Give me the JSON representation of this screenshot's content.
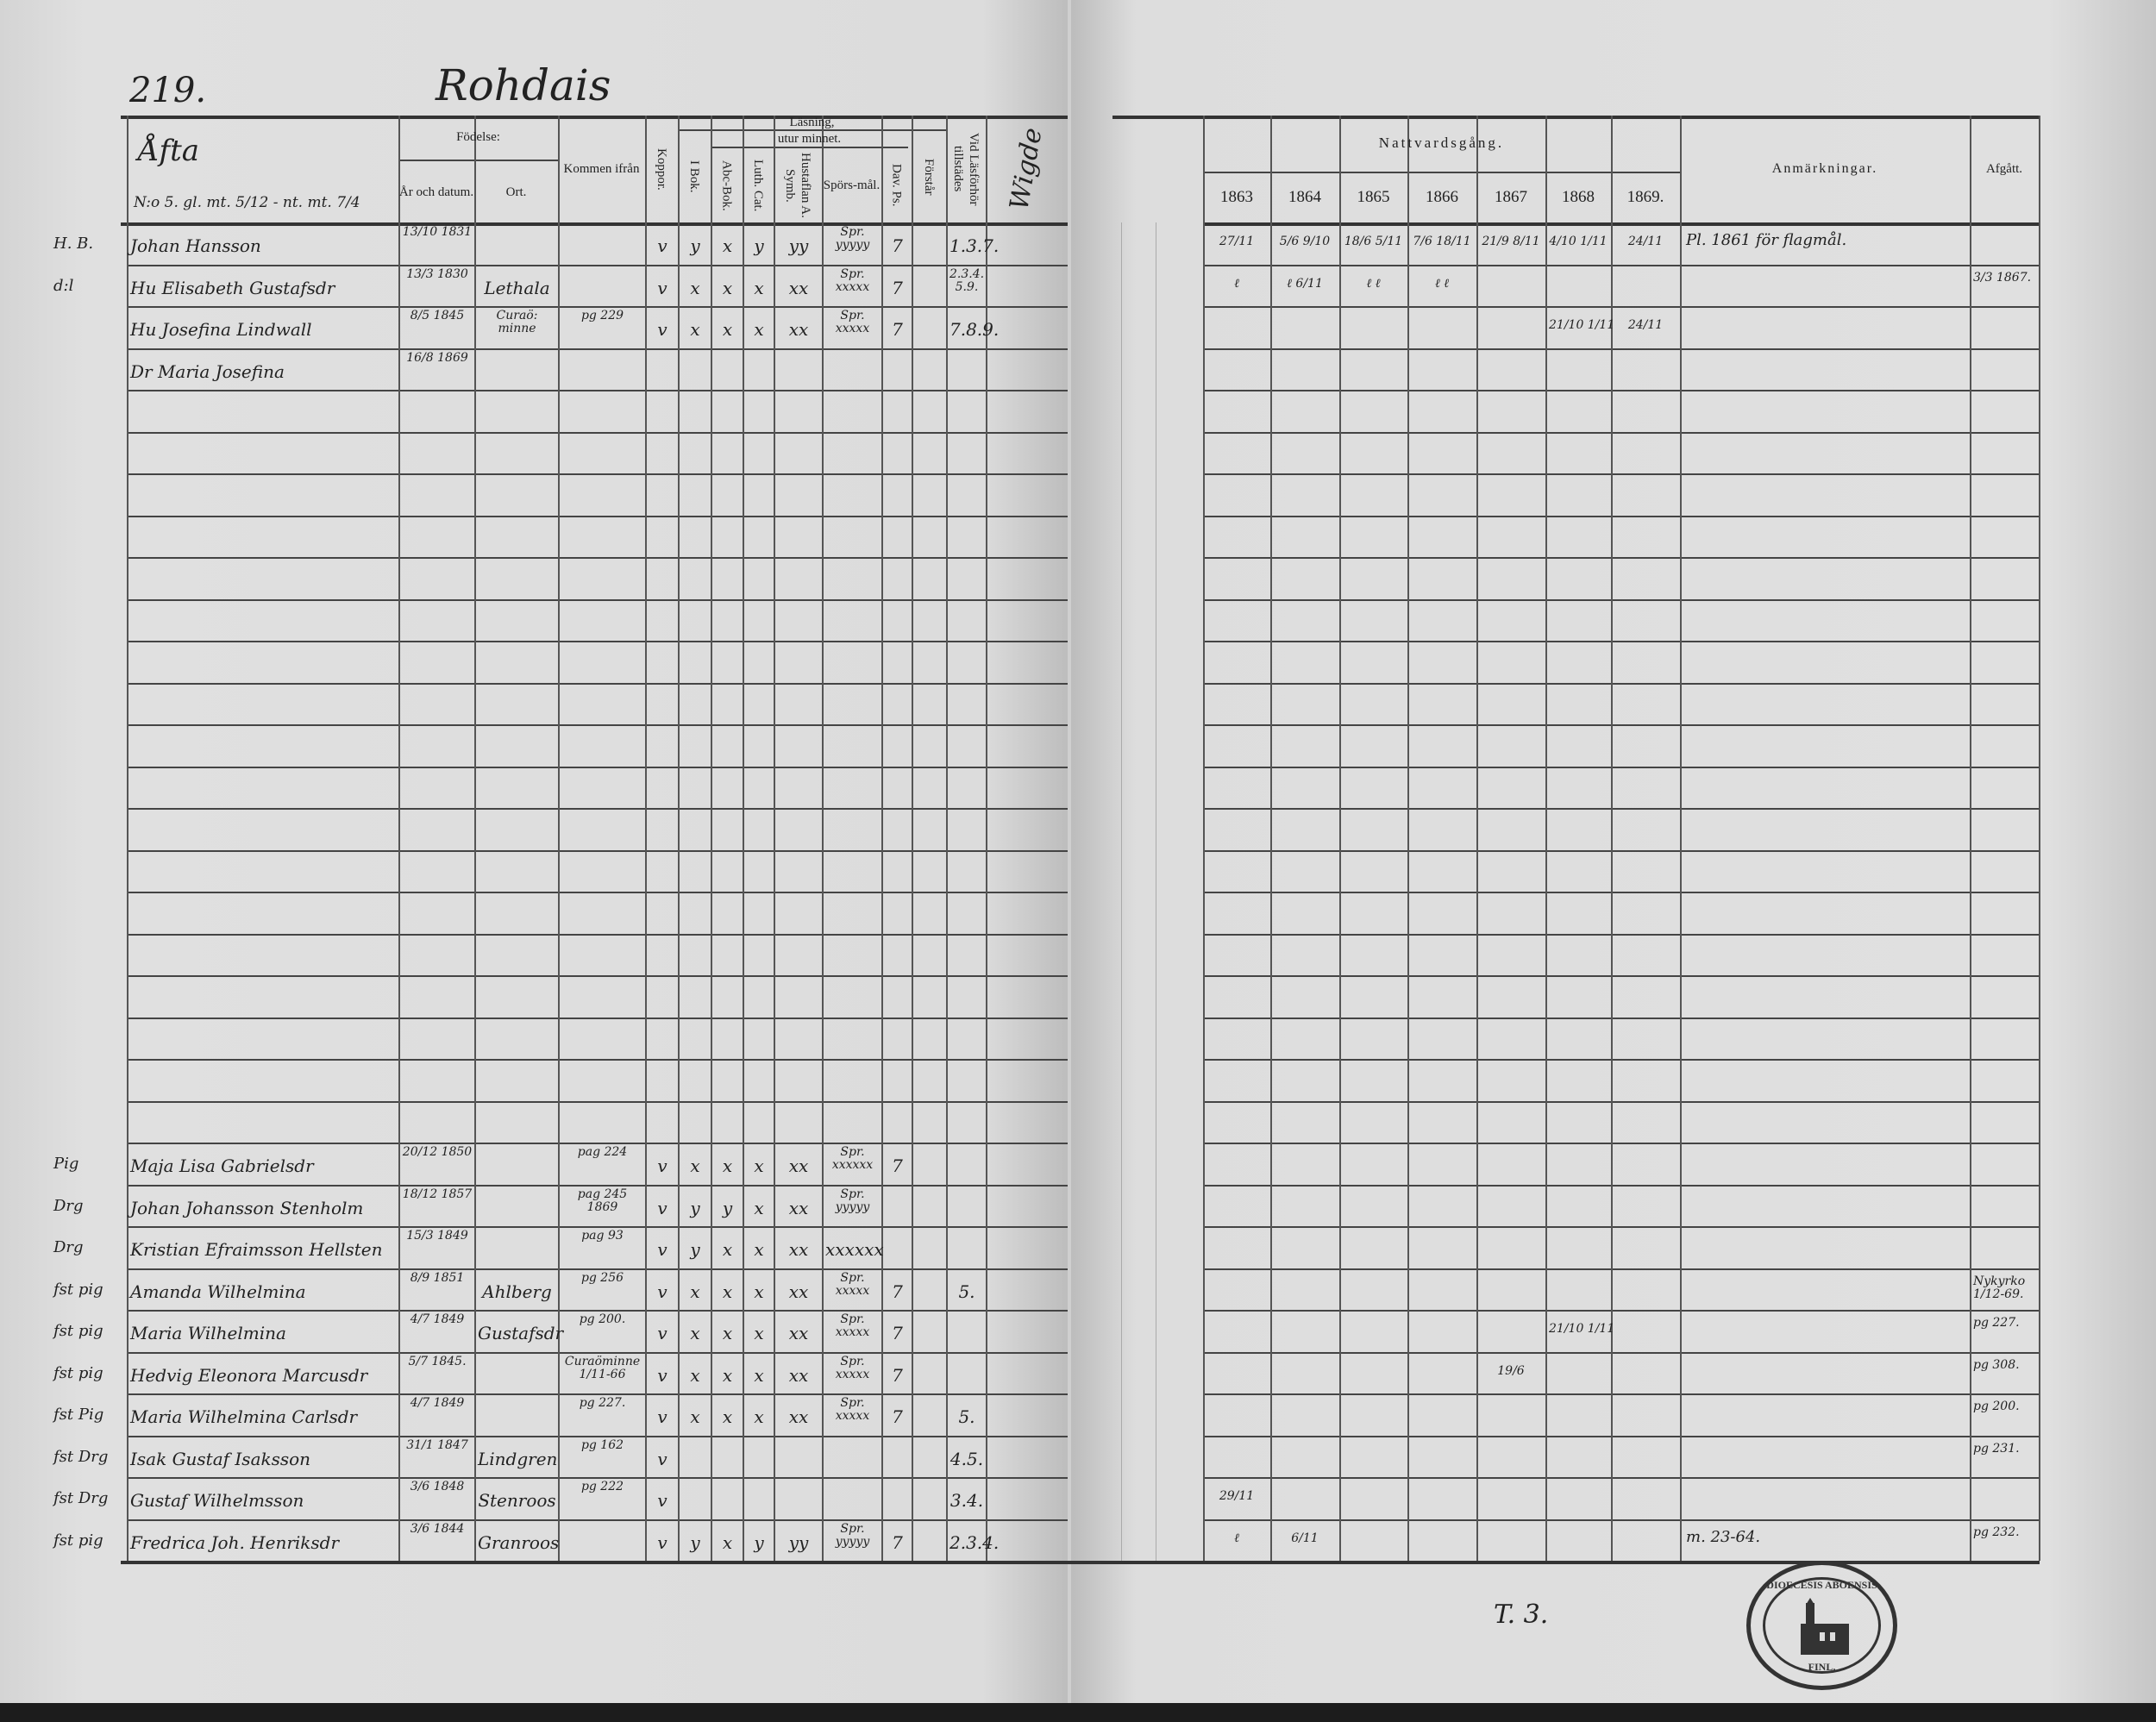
{
  "left_page": {
    "page_number": "219.",
    "title": "Rohdais",
    "header": {
      "afta": "Åfta",
      "afta_sub": "N:o 5. gl. mt. 5/12 - nt. mt. 7/4",
      "fodelse": "Födelse:",
      "ar_datum": "År och datum.",
      "ort": "Ort.",
      "kommen": "Kommen ifrån",
      "koppor": "Koppor.",
      "lasning": "Läsning,",
      "utur_minnet": "utur minnet.",
      "i_bok": "I Bok.",
      "abc": "Abc-Bok.",
      "luth": "Luth. Cat.",
      "hust": "Hustaflan A. Symb.",
      "spors": "Spörs-mål.",
      "dav": "Dav. Ps.",
      "forstar": "Förstår",
      "vid": "Vid Läsförhör tillstädes",
      "wigde": "Wigde"
    }
  },
  "right_page": {
    "header": {
      "nattvard": "Nattvardsgång.",
      "years": [
        "1863",
        "1864",
        "1865",
        "1866",
        "1867",
        "1868",
        "1869."
      ],
      "anmarkningar": "Anmärkningar.",
      "afgatt": "Afgått."
    },
    "footer": "T. 3.",
    "seal_text": {
      "top": "DIOECESIS ABOENSIS",
      "bottom": "FINL."
    }
  },
  "rows": [
    {
      "margin": "H. B.",
      "name": "Johan Hansson",
      "birth_date": "13/10 1831",
      "koppor": "v",
      "i_bok": "y",
      "abc": "x",
      "luth": "y",
      "hust": "yy",
      "spors": "Spr. yyyyy",
      "dav": "7",
      "vid": "1.3.7.",
      "communion": [
        "27/11",
        "5/6 9/10",
        "18/6 5/11",
        "7/6 18/11",
        "21/9 8/11",
        "4/10 1/11",
        "24/11"
      ],
      "remark": "Pl. 1861 för flagmål."
    },
    {
      "margin": "d:l",
      "name": "Hu Elisabeth Gustafsdr",
      "birth_date": "13/3 1830",
      "birth_place": "Lethala",
      "koppor": "v",
      "i_bok": "x",
      "abc": "x",
      "luth": "x",
      "hust": "xx",
      "spors": "Spr. xxxxx",
      "dav": "7",
      "vid": "2.3.4. 5.9.",
      "communion": [
        "ℓ",
        "ℓ 6/11",
        "ℓ ℓ",
        "ℓ ℓ",
        "",
        "",
        ""
      ],
      "afgatt": "3/3 1867."
    },
    {
      "name": "Hu Josefina Lindwall",
      "birth_date": "8/5 1845",
      "birth_place": "Curaö: minne",
      "from": "pg 229",
      "koppor": "v",
      "i_bok": "x",
      "abc": "x",
      "luth": "x",
      "hust": "xx",
      "spors": "Spr. xxxxx",
      "dav": "7",
      "vid": "7.8.9.",
      "communion": [
        "",
        "",
        "",
        "",
        "",
        "21/10 1/11",
        "24/11"
      ]
    },
    {
      "name": "Dr Maria Josefina",
      "birth_date": "16/8 1869"
    },
    {},
    {},
    {},
    {},
    {},
    {},
    {},
    {},
    {},
    {},
    {},
    {},
    {},
    {},
    {},
    {},
    {},
    {},
    {
      "margin": "Pig",
      "name": "Maja Lisa Gabrielsdr",
      "birth_date": "20/12 1850",
      "from": "pag 224",
      "koppor": "v",
      "i_bok": "x",
      "abc": "x",
      "luth": "x",
      "hust": "xx",
      "spors": "Spr. xxxxxx",
      "dav": "7"
    },
    {
      "margin": "Drg",
      "name": "Johan Johansson Stenholm",
      "birth_date": "18/12 1857",
      "from": "pag 245 1869",
      "koppor": "v",
      "i_bok": "y",
      "abc": "y",
      "luth": "x",
      "hust": "xx",
      "spors": "Spr. yyyyy"
    },
    {
      "margin": "Drg",
      "name": "Kristian Efraimsson Hellsten",
      "birth_date": "15/3 1849",
      "from": "pag 93",
      "koppor": "v",
      "i_bok": "y",
      "abc": "x",
      "luth": "x",
      "hust": "xx",
      "spors": "xxxxxx"
    },
    {
      "margin": "fst pig",
      "name": "Amanda Wilhelmina",
      "birth_date": "8/9 1851",
      "birth_place": "Ahlberg",
      "from": "pg 256",
      "koppor": "v",
      "i_bok": "x",
      "abc": "x",
      "luth": "x",
      "hust": "xx",
      "spors": "Spr. xxxxx",
      "dav": "7",
      "vid": "5.",
      "afgatt": "Nykyrko 1/12-69."
    },
    {
      "margin": "fst pig",
      "name": "Maria Wilhelmina",
      "birth_date": "4/7 1849",
      "birth_place": "Gustafsdr",
      "from": "pg 200.",
      "koppor": "v",
      "i_bok": "x",
      "abc": "x",
      "luth": "x",
      "hust": "xx",
      "spors": "Spr. xxxxx",
      "dav": "7",
      "communion": [
        "",
        "",
        "",
        "",
        "",
        "21/10 1/11",
        ""
      ],
      "afgatt": "pg 227."
    },
    {
      "margin": "fst pig",
      "name": "Hedvig Eleonora Marcusdr",
      "birth_date": "5/7 1845.",
      "from": "Curaöminne 1/11-66",
      "koppor": "v",
      "i_bok": "x",
      "abc": "x",
      "luth": "x",
      "hust": "xx",
      "spors": "Spr. xxxxx",
      "dav": "7",
      "communion": [
        "",
        "",
        "",
        "",
        "19/6",
        "",
        ""
      ],
      "afgatt": "pg 308."
    },
    {
      "margin": "fst Pig",
      "name": "Maria Wilhelmina Carlsdr",
      "birth_date": "4/7 1849",
      "from": "pg 227.",
      "koppor": "v",
      "i_bok": "x",
      "abc": "x",
      "luth": "x",
      "hust": "xx",
      "spors": "Spr. xxxxx",
      "dav": "7",
      "vid": "5.",
      "afgatt": "pg 200."
    },
    {
      "margin": "fst Drg",
      "name": "Isak Gustaf Isaksson",
      "birth_date": "31/1 1847",
      "birth_place": "Lindgren",
      "from": "pg 162",
      "koppor": "v",
      "vid": "4.5.",
      "afgatt": "pg 231."
    },
    {
      "margin": "fst Drg",
      "name": "Gustaf Wilhelmsson",
      "birth_date": "3/6 1848",
      "birth_place": "Stenroos",
      "from": "pg 222",
      "koppor": "v",
      "vid": "3.4.",
      "communion": [
        "29/11",
        "",
        "",
        "",
        "",
        "",
        ""
      ]
    },
    {
      "margin": "fst pig",
      "name": "Fredrica Joh. Henriksdr",
      "birth_date": "3/6 1844",
      "birth_place": "Granroos",
      "koppor": "v",
      "i_bok": "y",
      "abc": "x",
      "luth": "y",
      "hust": "yy",
      "spors": "Spr. yyyyy",
      "dav": "7",
      "vid": "2.3.4.",
      "communion": [
        "ℓ",
        "6/11",
        "",
        "",
        "",
        "",
        ""
      ],
      "remark": "m. 23-64.",
      "afgatt": "pg 232."
    }
  ]
}
